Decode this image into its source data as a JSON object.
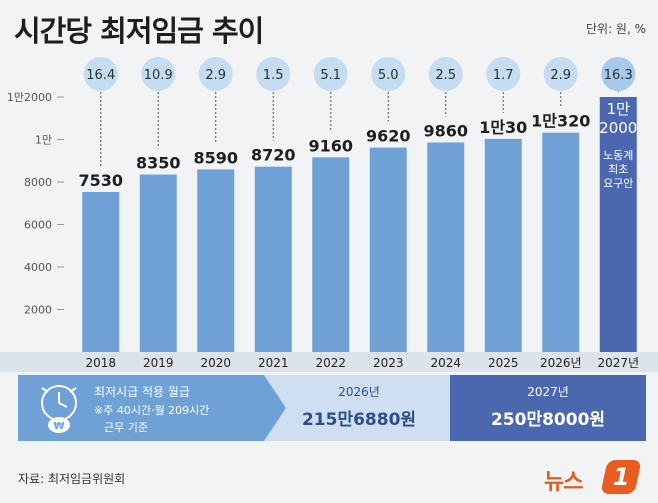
{
  "header": {
    "title": "시간당 최저임금 추이",
    "unit": "단위: 원, %"
  },
  "chart_data": {
    "type": "bar",
    "title": "시간당 최저임금 추이",
    "categories": [
      "2018",
      "2019",
      "2020",
      "2021",
      "2022",
      "2023",
      "2024",
      "2025",
      "2026년",
      "2027년"
    ],
    "values": [
      7530,
      8350,
      8590,
      8720,
      9160,
      9620,
      9860,
      10030,
      10320,
      12000
    ],
    "value_labels": [
      [
        "7530"
      ],
      [
        "8350"
      ],
      [
        "8590"
      ],
      [
        "8720"
      ],
      [
        "9160"
      ],
      [
        "9620"
      ],
      [
        "9860"
      ],
      [
        "1만30"
      ],
      [
        "1만320"
      ],
      [
        "1만",
        "2000"
      ]
    ],
    "growth_rates": [
      16.4,
      10.9,
      2.9,
      1.5,
      5.1,
      5.0,
      2.5,
      1.7,
      2.9,
      16.3
    ],
    "growth_labels": [
      "16.4",
      "10.9",
      "2.9",
      "1.5",
      "5.1",
      "5.0",
      "2.5",
      "1.7",
      "2.9",
      "16.3"
    ],
    "highlight_index": 9,
    "highlight_note": [
      "노동계",
      "최초",
      "요구안"
    ],
    "yticks": [
      {
        "value": 2000,
        "label": "2000"
      },
      {
        "value": 4000,
        "label": "4000"
      },
      {
        "value": 6000,
        "label": "6000"
      },
      {
        "value": 8000,
        "label": "8000"
      },
      {
        "value": 10000,
        "label": "1만"
      },
      {
        "value": 12000,
        "label": "1만2000"
      }
    ],
    "ylim": [
      0,
      12000
    ],
    "xlabel": "",
    "ylabel": "",
    "grid": false,
    "colors": {
      "bar": "#6fa0d6",
      "bar_highlight": "#4a67b0",
      "bubble": "#c6dcf1",
      "bubble_highlight": "#a9c8ee",
      "baseline": "#cbd5e1"
    }
  },
  "monthly": {
    "label": "최저시급 적용 월급",
    "note1": "※주 40시간·월 209시간",
    "note2": "근무 기준",
    "year_2026": "2026년",
    "amount_2026": "215만6880원",
    "year_2027": "2027년",
    "amount_2027": "250만8000원",
    "icon": "clock-won-icon"
  },
  "footer": {
    "source": "자료: 최저임금위원회",
    "logo_text": "뉴스",
    "logo_badge": "1"
  }
}
